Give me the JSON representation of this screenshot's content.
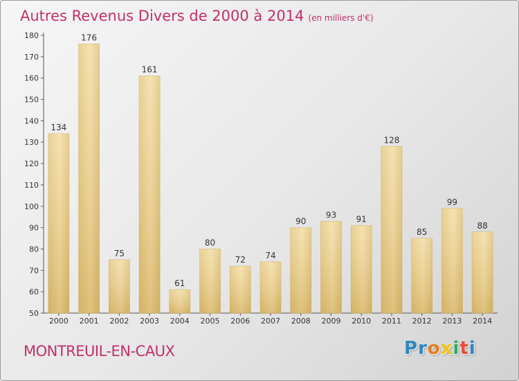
{
  "title": {
    "main": "Autres Revenus Divers de 2000 à 2014",
    "unit": "(en milliers d'€)"
  },
  "place": "MONTREUIL-EN-CAUX",
  "logo": {
    "letters": [
      "P",
      "r",
      "o",
      "x",
      "i",
      "t",
      "i"
    ],
    "colors": [
      "#2e86c1",
      "#2e86c1",
      "#e67e22",
      "#f1c40f",
      "#27ae60",
      "#e74c3c",
      "#2e86c1"
    ]
  },
  "chart_data": {
    "type": "bar",
    "title": "Autres Revenus Divers de 2000 à 2014",
    "subtitle": "(en milliers d'€)",
    "categories": [
      "2000",
      "2001",
      "2002",
      "2003",
      "2004",
      "2005",
      "2006",
      "2007",
      "2008",
      "2009",
      "2010",
      "2011",
      "2012",
      "2013",
      "2014"
    ],
    "values": [
      134,
      176,
      75,
      161,
      61,
      80,
      72,
      74,
      90,
      93,
      91,
      128,
      85,
      99,
      88
    ],
    "ylim": [
      50,
      180
    ],
    "yticks": [
      50,
      60,
      70,
      80,
      90,
      100,
      110,
      120,
      130,
      140,
      150,
      160,
      170,
      180
    ],
    "grid": false,
    "bar_color": "#e6c576"
  }
}
